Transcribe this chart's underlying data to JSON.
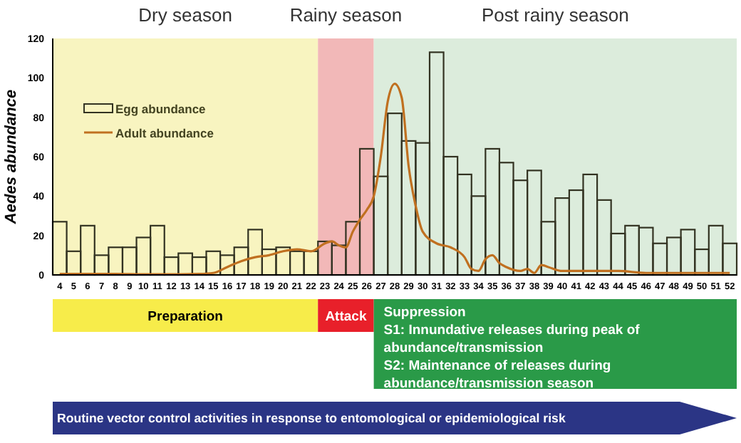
{
  "chart_data": {
    "type": "bar",
    "ylabel": "Aedes abundance",
    "xlim": [
      3.5,
      52.5
    ],
    "xticks": [
      4,
      5,
      6,
      7,
      8,
      9,
      10,
      11,
      12,
      13,
      14,
      15,
      16,
      17,
      18,
      19,
      20,
      21,
      22,
      23,
      24,
      25,
      26,
      27,
      28,
      29,
      30,
      31,
      32,
      33,
      34,
      35,
      36,
      37,
      38,
      39,
      40,
      41,
      42,
      43,
      44,
      45,
      46,
      47,
      48,
      49,
      50,
      51,
      52
    ],
    "ylim": [
      0,
      120
    ],
    "yticks": [
      0,
      20,
      40,
      60,
      80,
      100,
      120
    ],
    "series": [
      {
        "name": "Egg abundance",
        "color": "#333322",
        "x": [
          4,
          5,
          6,
          7,
          8,
          9,
          10,
          11,
          12,
          13,
          14,
          15,
          16,
          17,
          18,
          19,
          20,
          21,
          22,
          23,
          24,
          25,
          26,
          27,
          28,
          29,
          30,
          31,
          32,
          33,
          34,
          35,
          36,
          37,
          38,
          39,
          40,
          41,
          42,
          43,
          44,
          45,
          46,
          47,
          48,
          49,
          50,
          51,
          52
        ],
        "values": [
          27,
          12,
          25,
          10,
          14,
          14,
          19,
          25,
          9,
          11,
          9,
          12,
          10,
          14,
          23,
          13,
          14,
          12,
          12,
          17,
          15,
          27,
          64,
          50,
          82,
          68,
          67,
          113,
          60,
          51,
          40,
          64,
          57,
          48,
          53,
          27,
          39,
          43,
          51,
          38,
          21,
          25,
          24,
          16,
          19,
          23,
          13,
          25,
          16
        ]
      },
      {
        "name": "Adult abundance",
        "type": "line",
        "color": "#c07020",
        "x": [
          4,
          6,
          8,
          10,
          12,
          14,
          15,
          16,
          17,
          18,
          19,
          20,
          21,
          22,
          23,
          23.5,
          24,
          24.5,
          25,
          25.5,
          26,
          26.5,
          27,
          27.5,
          28,
          28.5,
          29,
          29.5,
          30,
          31,
          32,
          33,
          33.5,
          34,
          34.5,
          35,
          35.5,
          36,
          37,
          37.5,
          38,
          38.5,
          39,
          40,
          42,
          44,
          46,
          48,
          50,
          52
        ],
        "values": [
          0.5,
          0.5,
          0.5,
          0.3,
          0.3,
          0.5,
          1,
          4,
          7,
          9,
          10,
          12,
          13,
          12,
          16,
          17,
          15,
          14,
          22,
          28,
          33,
          40,
          60,
          88,
          97,
          90,
          55,
          35,
          22,
          16,
          14,
          9,
          3,
          2,
          8,
          10,
          6,
          4,
          2,
          3,
          1,
          5,
          4,
          2,
          2,
          2,
          1,
          1,
          1,
          1
        ]
      }
    ],
    "bands": [
      {
        "axis": "x",
        "from": 3.5,
        "to": 22.5,
        "label": "Dry season",
        "color": "#f8f4c0"
      },
      {
        "axis": "x",
        "from": 22.5,
        "to": 26.5,
        "label": "Rainy season",
        "color": "#f2b8b8"
      },
      {
        "axis": "x",
        "from": 26.5,
        "to": 52.5,
        "label": "Post rainy season",
        "color": "#dcecdc"
      }
    ],
    "legend": "top left",
    "grid": false,
    "annotations": [
      "Preparation",
      "Attack",
      "Suppression\nS1: Innundative releases during peak of\nabundance/transmission\nS2: Maintenance of releases during\nabundance/transmission season",
      "Routine vector control activities in response to entomological or epidemiological risk"
    ]
  }
}
